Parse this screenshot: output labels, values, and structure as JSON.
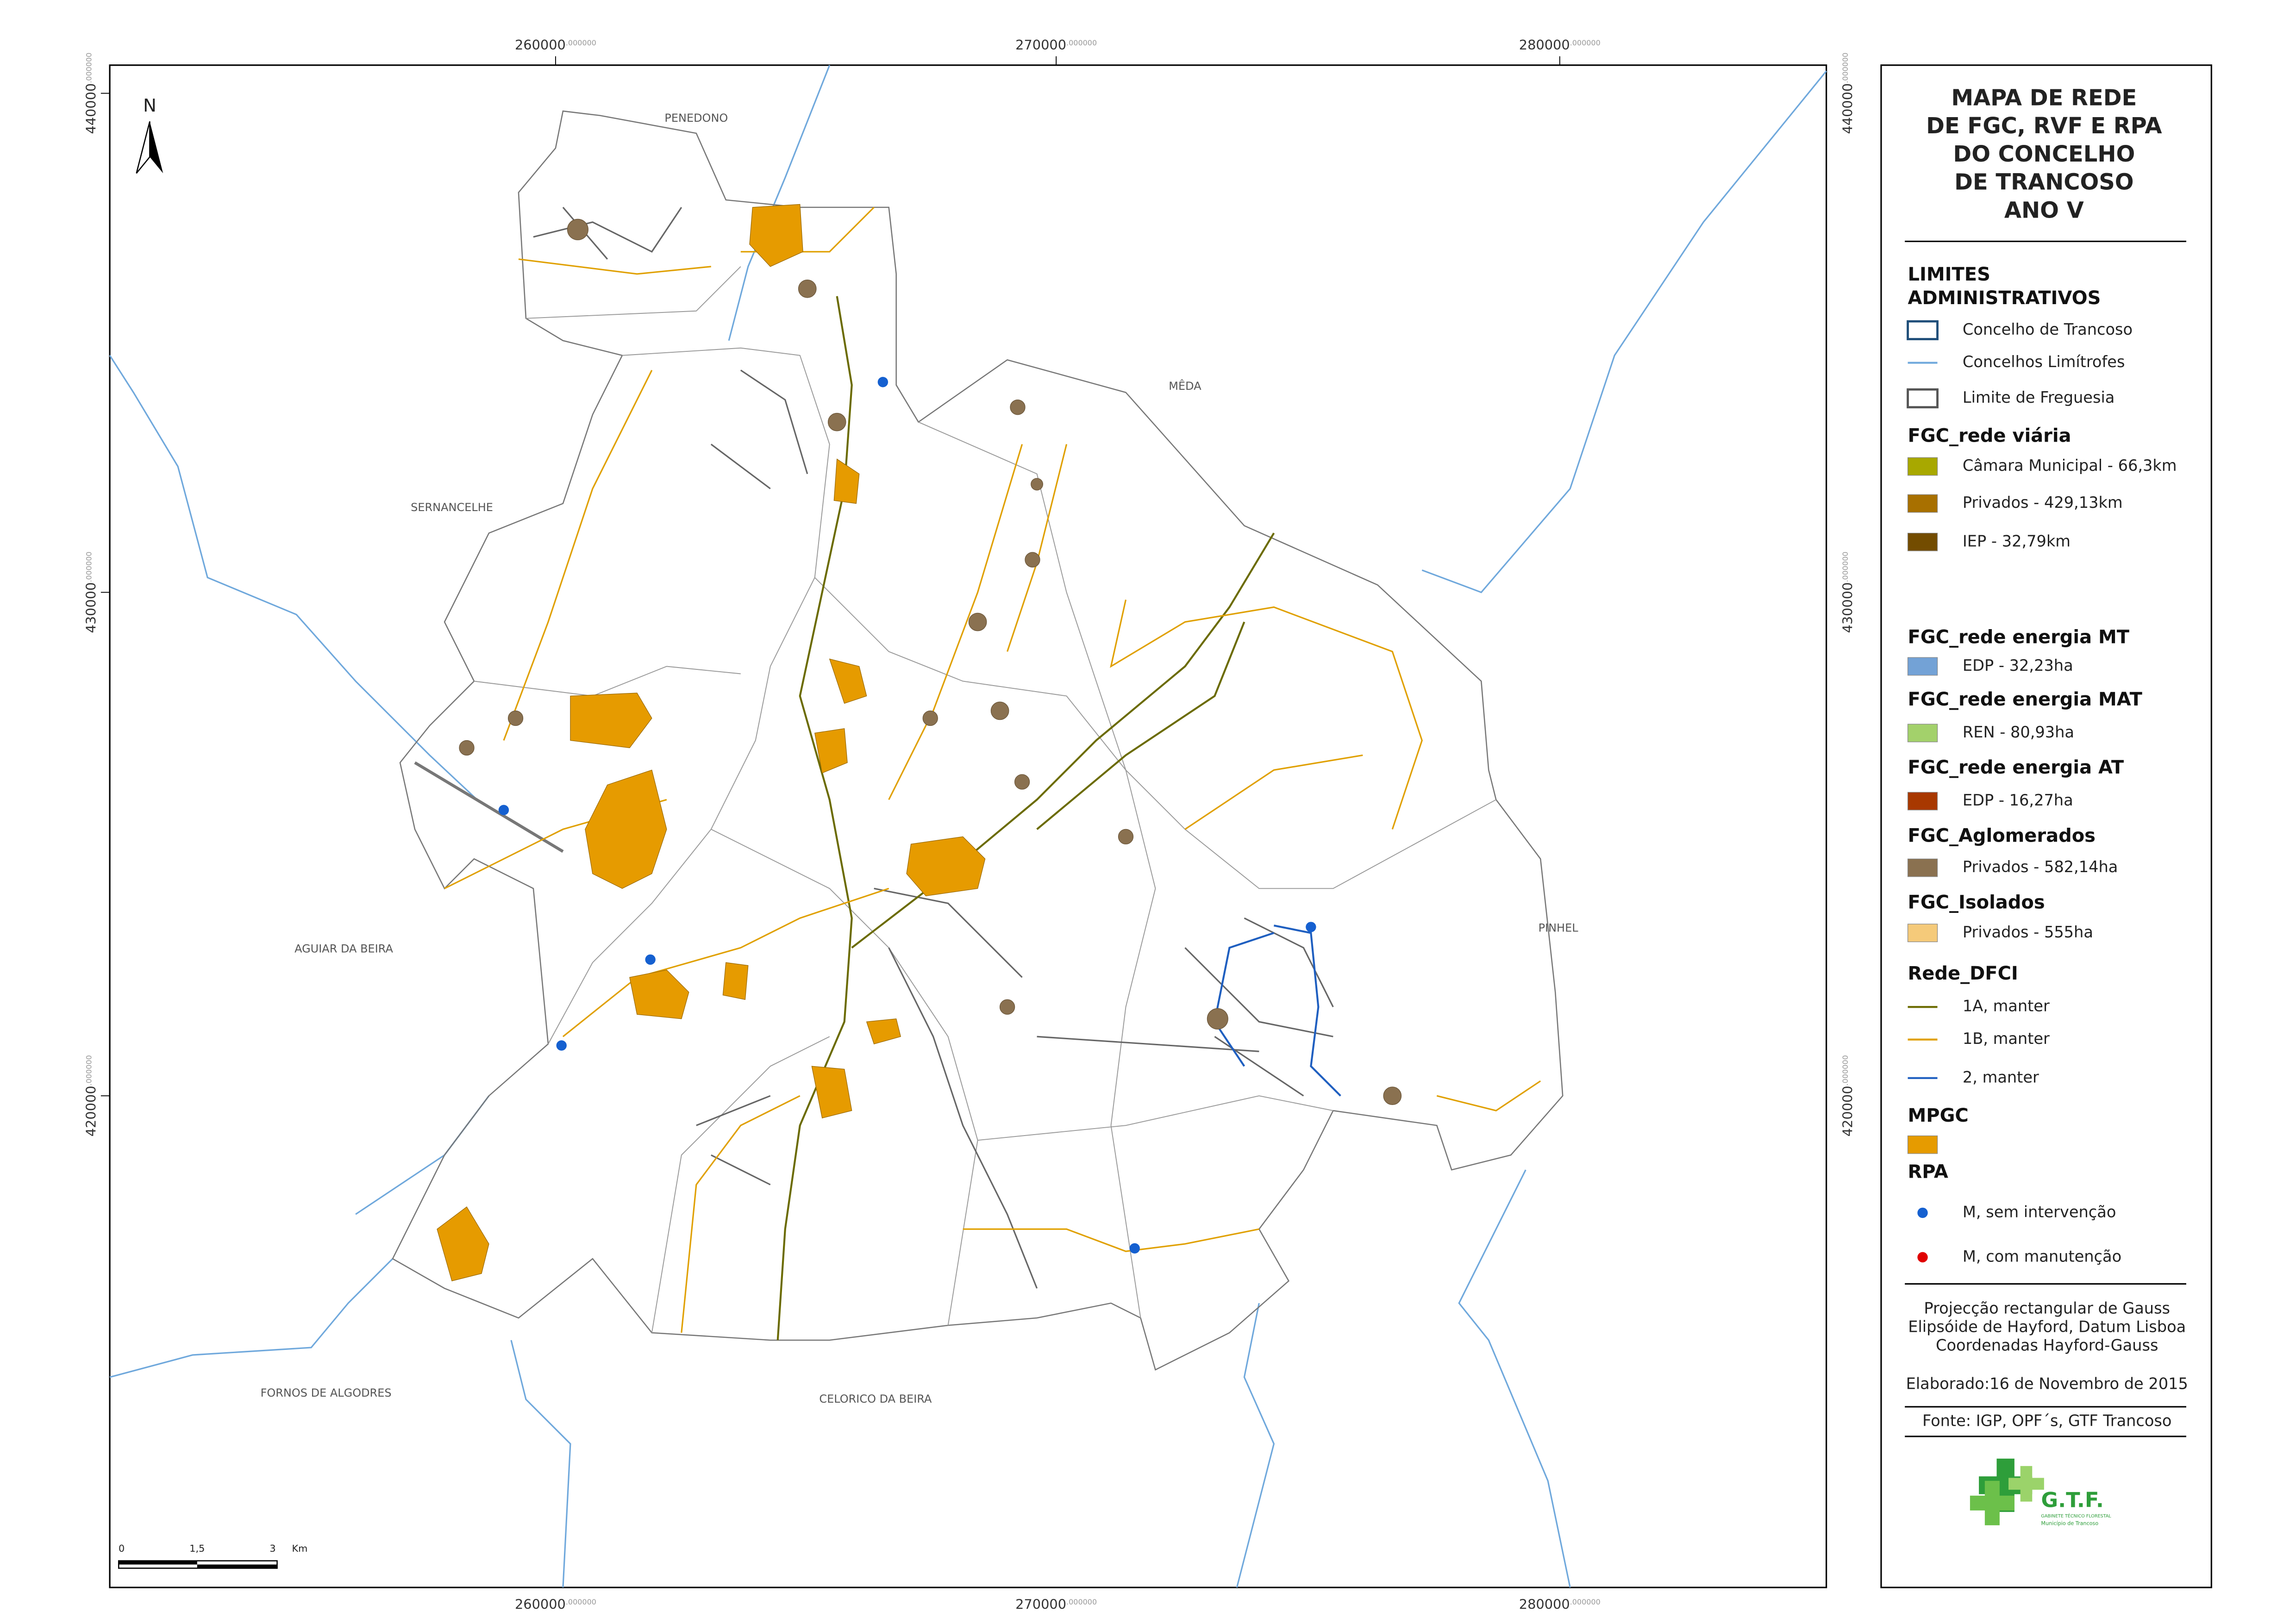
{
  "title": [
    "MAPA DE REDE",
    "DE FGC, RVF E RPA",
    "DO CONCELHO",
    "DE TRANCOSO",
    "ANO V"
  ],
  "places": [
    "PENEDONO",
    "MÊDA",
    "SERNANCELHE",
    "AGUIAR DA BEIRA",
    "PINHEL",
    "FORNOS DE ALGODRES",
    "CELORICO DA BEIRA"
  ],
  "north": "N",
  "grid": {
    "x": [
      {
        "label": "260000",
        "dec": ".000000"
      },
      {
        "label": "270000",
        "dec": ".000000"
      },
      {
        "label": "280000",
        "dec": ".000000"
      }
    ],
    "y": [
      {
        "label": "440000",
        "dec": ".000000"
      },
      {
        "label": "430000",
        "dec": ".000000"
      },
      {
        "label": "420000",
        "dec": ".000000"
      }
    ]
  },
  "scale_bar": [
    "0",
    "1,5",
    "3",
    "Km"
  ],
  "legend": [
    {
      "header": [
        "LIMITES",
        "ADMINISTRATIVOS"
      ],
      "items": [
        {
          "label": "Concelho de Trancoso",
          "symbol": "outline",
          "color": "#1f4e79"
        },
        {
          "label": "Concelhos Limítrofes",
          "symbol": "line",
          "color": "#6fa8dc"
        },
        {
          "label": "Limite de Freguesia",
          "symbol": "outline",
          "color": "#555555"
        }
      ]
    },
    {
      "header": [
        "FGC_rede viária"
      ],
      "items": [
        {
          "label": "Câmara Municipal - 66,3km",
          "symbol": "box",
          "color": "#a8a800"
        },
        {
          "label": "Privados - 429,13km",
          "symbol": "box",
          "color": "#a87000"
        },
        {
          "label": "IEP - 32,79km",
          "symbol": "box",
          "color": "#734c00"
        }
      ]
    },
    {
      "header": [
        "FGC_rede energia MT"
      ],
      "items": [
        {
          "label": "EDP - 32,23ha",
          "symbol": "box",
          "color": "#73a2d6"
        }
      ]
    },
    {
      "header": [
        "FGC_rede energia MAT"
      ],
      "items": [
        {
          "label": "REN - 80,93ha",
          "symbol": "box",
          "color": "#a3d16b"
        }
      ]
    },
    {
      "header": [
        "FGC_rede energia AT"
      ],
      "items": [
        {
          "label": "EDP - 16,27ha",
          "symbol": "box",
          "color": "#a83800"
        }
      ]
    },
    {
      "header": [
        "FGC_Aglomerados"
      ],
      "items": [
        {
          "label": "Privados - 582,14ha",
          "symbol": "box",
          "color": "#8a7150"
        }
      ]
    },
    {
      "header": [
        "FGC_Isolados"
      ],
      "items": [
        {
          "label": "Privados - 555ha",
          "symbol": "box",
          "color": "#f5ca7a"
        }
      ]
    },
    {
      "header": [
        "Rede_DFCI"
      ],
      "items": [
        {
          "label": "1A, manter",
          "symbol": "line",
          "color": "#6b6b00"
        },
        {
          "label": "1B, manter",
          "symbol": "line",
          "color": "#e0a000"
        },
        {
          "label": "2, manter",
          "symbol": "line",
          "color": "#1f5fc0"
        }
      ]
    },
    {
      "header": [
        "MPGC"
      ],
      "items": [
        {
          "label": null,
          "symbol": "box",
          "color": "#e69b00"
        }
      ]
    },
    {
      "header": [
        "RPA"
      ],
      "items": [
        {
          "label": "M, sem intervenção",
          "symbol": "dot",
          "color": "#1560d0"
        },
        {
          "label": "M, com manutenção",
          "symbol": "dot",
          "color": "#e00000"
        }
      ]
    }
  ],
  "notes": [
    "Projecção rectangular de Gauss",
    "Elipsóide de Hayford, Datum Lisboa",
    "Coordenadas Hayford-Gauss"
  ],
  "date": "Elaborado:16 de Novembro de 2015",
  "source": "Fonte: IGP, OPF´s, GTF Trancoso",
  "logo": {
    "name": "G.T.F.",
    "line1": "GABINETE TÉCNICO FLORESTAL",
    "line2": "Município de Trancoso"
  }
}
